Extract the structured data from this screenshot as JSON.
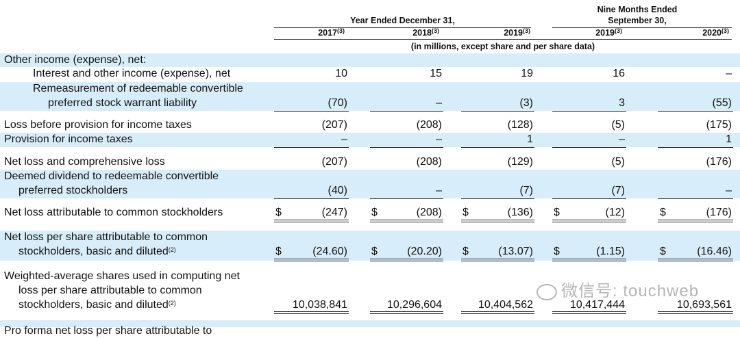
{
  "header": {
    "year_ended": "Year Ended December 31,",
    "nine_months_line1": "Nine Months Ended",
    "nine_months_line2": "September 30,",
    "columns": [
      {
        "year": "2017",
        "note": "(3)"
      },
      {
        "year": "2018",
        "note": "(3)"
      },
      {
        "year": "2019",
        "note": "(3)"
      },
      {
        "year": "2019",
        "note": "(3)"
      },
      {
        "year": "2020",
        "note": "(3)"
      }
    ],
    "units_note": "(in millions, except share and per share data)"
  },
  "rows": [
    {
      "lines": [
        "Other income (expense), net:"
      ],
      "values": [],
      "note": ""
    },
    {
      "lines": [
        "Interest and other income (expense), net"
      ],
      "values": [
        "10",
        "15",
        "19",
        "16",
        "–"
      ],
      "note": ""
    },
    {
      "lines": [
        "Remeasurement of redeemable convertible",
        "preferred stock warrant liability"
      ],
      "values": [
        "(70)",
        "–",
        "(3)",
        "3",
        "(55)"
      ],
      "note": ""
    },
    {
      "lines": [
        "Loss before provision for income taxes"
      ],
      "values": [
        "(207)",
        "(208)",
        "(128)",
        "(5)",
        "(175)"
      ],
      "note": ""
    },
    {
      "lines": [
        "Provision for income taxes"
      ],
      "values": [
        "–",
        "–",
        "1",
        "–",
        "1"
      ],
      "note": ""
    },
    {
      "lines": [
        "Net loss and comprehensive loss"
      ],
      "values": [
        "(207)",
        "(208)",
        "(129)",
        "(5)",
        "(176)"
      ],
      "note": ""
    },
    {
      "lines": [
        "Deemed dividend to redeemable convertible",
        "preferred stockholders"
      ],
      "values": [
        "(40)",
        "–",
        "(7)",
        "(7)",
        "–"
      ],
      "note": ""
    },
    {
      "lines": [
        "Net loss attributable to common stockholders"
      ],
      "values": [
        "(247)",
        "(208)",
        "(136)",
        "(12)",
        "(176)"
      ],
      "note": "",
      "currency": "$"
    },
    {
      "lines": [
        "Net loss per share attributable to common",
        "stockholders, basic and diluted"
      ],
      "values": [
        "(24.60)",
        "(20.20)",
        "(13.07)",
        "(1.15)",
        "(16.46)"
      ],
      "note": "(2)",
      "currency": "$"
    },
    {
      "lines": [
        "Weighted-average shares used in computing net",
        "loss per share attributable to common",
        "stockholders, basic and diluted"
      ],
      "values": [
        "10,038,841",
        "10,296,604",
        "10,404,562",
        "10,417,444",
        "10,693,561"
      ],
      "note": "(2)"
    },
    {
      "lines": [
        "Pro forma net loss per share attributable to"
      ],
      "values": [],
      "note": ""
    }
  ],
  "watermark": "微信号: touchweb",
  "colors": {
    "band": "#d7eefa",
    "text": "#111111"
  }
}
